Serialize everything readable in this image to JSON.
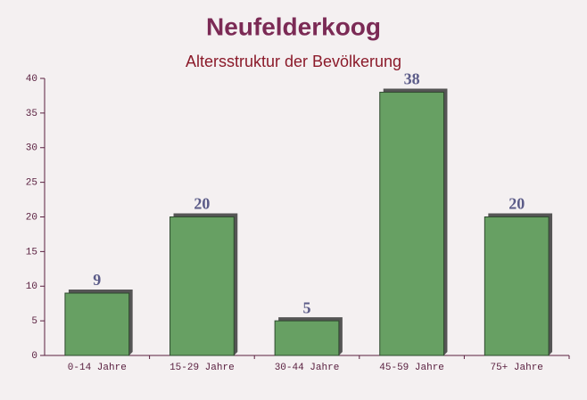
{
  "chart_data": {
    "type": "bar",
    "title": "Neufelderkoog",
    "subtitle": "Altersstruktur der Bevölkerung",
    "categories": [
      "0-14 Jahre",
      "15-29 Jahre",
      "30-44 Jahre",
      "45-59 Jahre",
      "75+ Jahre"
    ],
    "values": [
      9,
      20,
      5,
      38,
      20
    ],
    "color": "#67a063",
    "ylim": [
      0,
      40
    ],
    "yticks": [
      0,
      5,
      10,
      15,
      20,
      25,
      30,
      35,
      40
    ],
    "grid": false
  }
}
